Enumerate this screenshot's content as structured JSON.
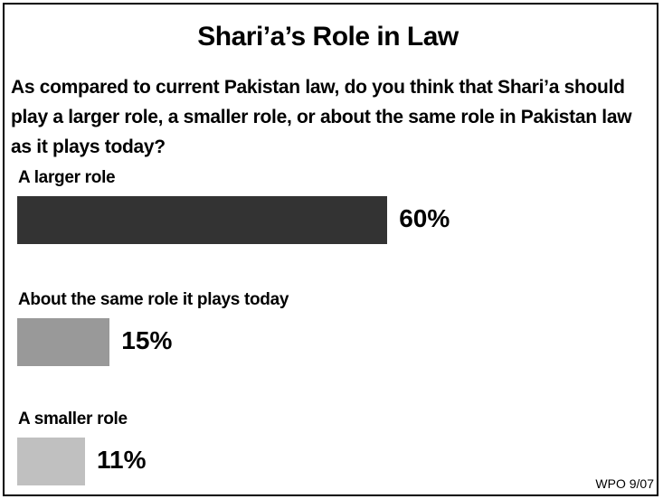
{
  "chart_data": {
    "type": "bar",
    "orientation": "horizontal",
    "title": "Shari’a’s Role in Law",
    "subtitle": "As compared to current Pakistan law, do you think that Shari’a should play a larger role, a smaller role, or about the same role in Pakistan law as it plays today?",
    "categories": [
      "A larger role",
      "About the same role it plays today",
      "A smaller role"
    ],
    "values": [
      60,
      15,
      11
    ],
    "value_labels": [
      "60%",
      "15%",
      "11%"
    ],
    "colors": [
      "#333333",
      "#999999",
      "#c0c0c0"
    ],
    "source": "WPO 9/07"
  }
}
